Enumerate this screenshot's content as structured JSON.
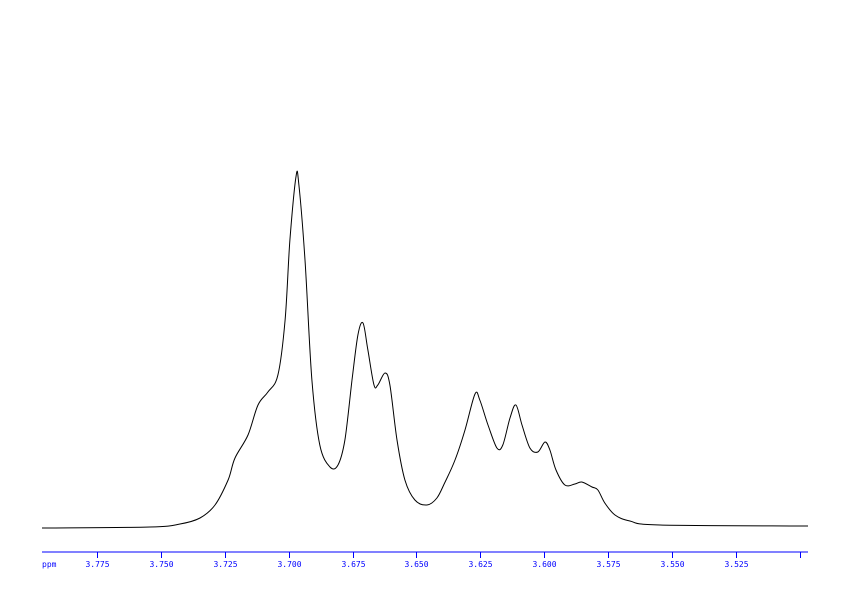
{
  "chart_data": {
    "type": "line",
    "title": "",
    "xlabel": "ppm",
    "ylabel": "",
    "xlim": [
      3.7965,
      3.4968
    ],
    "ylim": [
      0,
      528
    ],
    "x_reversed": true,
    "grid": false,
    "axis_color": "#0000ff",
    "line_color": "#000000",
    "x_ticks": [
      3.775,
      3.75,
      3.725,
      3.7,
      3.675,
      3.65,
      3.625,
      3.6,
      3.575,
      3.55,
      3.525,
      3.5
    ],
    "x_tick_labels": [
      "3.775",
      "3.750",
      "3.725",
      "3.700",
      "3.675",
      "3.650",
      "3.625",
      "3.600",
      "3.575",
      "3.550",
      "3.525",
      ""
    ],
    "series": [
      {
        "x": [
          3.7965,
          3.7543,
          3.7425,
          3.7347,
          3.7288,
          3.7237,
          3.721,
          3.7159,
          3.712,
          3.7081,
          3.7042,
          3.7014,
          3.6995,
          3.6971,
          3.696,
          3.6936,
          3.6909,
          3.6878,
          3.6838,
          3.6807,
          3.678,
          3.6752,
          3.6729,
          3.6709,
          3.669,
          3.6666,
          3.6651,
          3.6623,
          3.6604,
          3.6576,
          3.6545,
          3.6506,
          3.6459,
          3.642,
          3.6388,
          3.6349,
          3.631,
          3.6271,
          3.6252,
          3.622,
          3.6185,
          3.6162,
          3.6134,
          3.6111,
          3.6087,
          3.6056,
          3.6025,
          3.5997,
          3.5978,
          3.5954,
          3.5919,
          3.588,
          3.5853,
          3.5813,
          3.579,
          3.5763,
          3.5723,
          3.5665,
          3.5547,
          3.4968
        ],
        "y": [
          0,
          1,
          4,
          10,
          23,
          48,
          70,
          93,
          123,
          136,
          153,
          208,
          288,
          352,
          343,
          268,
          148,
          83,
          61,
          63,
          88,
          148,
          193,
          205,
          178,
          143,
          143,
          155,
          143,
          88,
          48,
          28,
          23,
          30,
          46,
          68,
          98,
          134,
          128,
          103,
          80,
          83,
          110,
          123,
          103,
          80,
          76,
          86,
          78,
          58,
          43,
          44,
          46,
          41,
          38,
          25,
          13,
          7,
          3,
          2
        ]
      }
    ]
  }
}
